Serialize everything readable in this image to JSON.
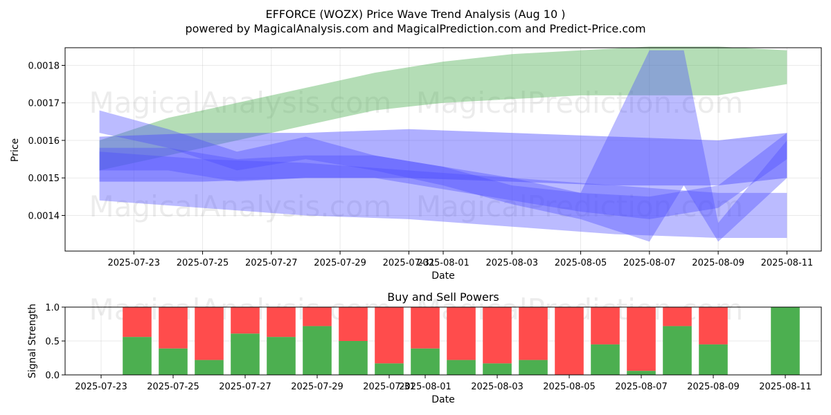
{
  "title_line1": "EFFORCE (WOZX) Price Wave Trend Analysis (Aug 10 )",
  "title_line2": "powered by MagicalAnalysis.com and MagicalPrediction.com and Predict-Price.com",
  "watermarks": [
    "MagicalAnalysis.com",
    "MagicalPrediction.com"
  ],
  "colors": {
    "green": "#4caf50",
    "red": "#ff4c4c",
    "blue": "#4d4dff",
    "green_band": "#66b266"
  },
  "chart_data": [
    {
      "type": "area",
      "title": "",
      "xlabel": "Date",
      "ylabel": "Price",
      "x_ticks": [
        "2025-07-23",
        "2025-07-25",
        "2025-07-27",
        "2025-07-29",
        "2025-07-31",
        "2025-08-01",
        "2025-08-03",
        "2025-08-05",
        "2025-08-07",
        "2025-08-09",
        "2025-08-11"
      ],
      "y_ticks": [
        "0.0014",
        "0.0015",
        "0.0016",
        "0.0017",
        "0.0018"
      ],
      "xlim": [
        "2025-07-21",
        "2025-08-12"
      ],
      "ylim": [
        0.001305,
        0.001847
      ],
      "grid": true,
      "series": [
        {
          "color": "green",
          "x": [
            "2025-07-22",
            "2025-07-24",
            "2025-07-26",
            "2025-07-28",
            "2025-07-30",
            "2025-08-01",
            "2025-08-03",
            "2025-08-05",
            "2025-08-07",
            "2025-08-09",
            "2025-08-11"
          ],
          "low": [
            0.00152,
            0.00156,
            0.0016,
            0.00164,
            0.00168,
            0.0017,
            0.00171,
            0.00172,
            0.00172,
            0.00172,
            0.00175
          ],
          "high": [
            0.0016,
            0.00166,
            0.0017,
            0.00174,
            0.00178,
            0.00181,
            0.00183,
            0.00184,
            0.00185,
            0.00185,
            0.00184
          ]
        },
        {
          "color": "blue",
          "x": [
            "2025-07-22",
            "2025-07-25",
            "2025-07-28",
            "2025-07-31",
            "2025-08-03",
            "2025-08-06",
            "2025-08-09",
            "2025-08-11"
          ],
          "low": [
            0.00149,
            0.00149,
            0.0015,
            0.0015,
            0.00149,
            0.00148,
            0.00148,
            0.0015
          ],
          "high": [
            0.00161,
            0.00162,
            0.00162,
            0.00163,
            0.00162,
            0.00161,
            0.0016,
            0.00162
          ]
        },
        {
          "color": "blue",
          "x": [
            "2025-07-22",
            "2025-07-25",
            "2025-07-28",
            "2025-07-31",
            "2025-08-03",
            "2025-08-06",
            "2025-08-09",
            "2025-08-11"
          ],
          "low": [
            0.00144,
            0.00142,
            0.0014,
            0.00139,
            0.00137,
            0.00135,
            0.00134,
            0.00134
          ],
          "high": [
            0.00157,
            0.00155,
            0.00154,
            0.00152,
            0.0015,
            0.00148,
            0.00146,
            0.00146
          ]
        },
        {
          "color": "blue",
          "x": [
            "2025-07-22",
            "2025-07-24",
            "2025-07-26",
            "2025-07-28",
            "2025-07-30",
            "2025-08-01",
            "2025-08-03",
            "2025-08-05",
            "2025-08-07",
            "2025-08-08",
            "2025-08-09",
            "2025-08-11"
          ],
          "low": [
            0.00162,
            0.00158,
            0.00152,
            0.00155,
            0.00152,
            0.00148,
            0.00143,
            0.00139,
            0.00133,
            0.00148,
            0.00133,
            0.0015
          ],
          "high": [
            0.00168,
            0.00163,
            0.00157,
            0.00161,
            0.00156,
            0.00153,
            0.00148,
            0.00146,
            0.00184,
            0.00184,
            0.00138,
            0.0016
          ]
        },
        {
          "color": "blue",
          "x": [
            "2025-07-22",
            "2025-07-24",
            "2025-07-26",
            "2025-07-28",
            "2025-07-30",
            "2025-08-01",
            "2025-08-03",
            "2025-08-05",
            "2025-08-07",
            "2025-08-09",
            "2025-08-11"
          ],
          "low": [
            0.00152,
            0.00152,
            0.00149,
            0.0015,
            0.0015,
            0.00147,
            0.00144,
            0.00141,
            0.00139,
            0.00142,
            0.00155
          ],
          "high": [
            0.00158,
            0.00158,
            0.00155,
            0.00156,
            0.00156,
            0.00153,
            0.0015,
            0.00146,
            0.00145,
            0.00148,
            0.00162
          ]
        }
      ]
    },
    {
      "type": "bar",
      "title": "Buy and Sell Powers",
      "xlabel": "Date",
      "ylabel": "Signal Strength",
      "x_ticks": [
        "2025-07-23",
        "2025-07-25",
        "2025-07-27",
        "2025-07-29",
        "2025-07-31",
        "2025-08-01",
        "2025-08-03",
        "2025-08-05",
        "2025-08-07",
        "2025-08-09",
        "2025-08-11"
      ],
      "y_ticks": [
        "0.0",
        "0.5",
        "1.0"
      ],
      "ylim": [
        0,
        1
      ],
      "categories": [
        "2025-07-24",
        "2025-07-25",
        "2025-07-26",
        "2025-07-27",
        "2025-07-28",
        "2025-07-29",
        "2025-07-30",
        "2025-07-31",
        "2025-08-01",
        "2025-08-02",
        "2025-08-03",
        "2025-08-04",
        "2025-08-05",
        "2025-08-06",
        "2025-08-07",
        "2025-08-08",
        "2025-08-09",
        "2025-08-11"
      ],
      "series": [
        {
          "color": "green",
          "values": [
            0.56,
            0.39,
            0.22,
            0.61,
            0.56,
            0.72,
            0.5,
            0.17,
            0.39,
            0.22,
            0.17,
            0.22,
            0.0,
            0.45,
            0.06,
            0.72,
            0.45,
            1.0
          ]
        },
        {
          "color": "red",
          "values": [
            0.44,
            0.61,
            0.78,
            0.39,
            0.44,
            0.28,
            0.5,
            0.83,
            0.61,
            0.78,
            0.83,
            0.78,
            1.0,
            0.55,
            0.94,
            0.28,
            0.55,
            0.0
          ]
        }
      ]
    }
  ]
}
